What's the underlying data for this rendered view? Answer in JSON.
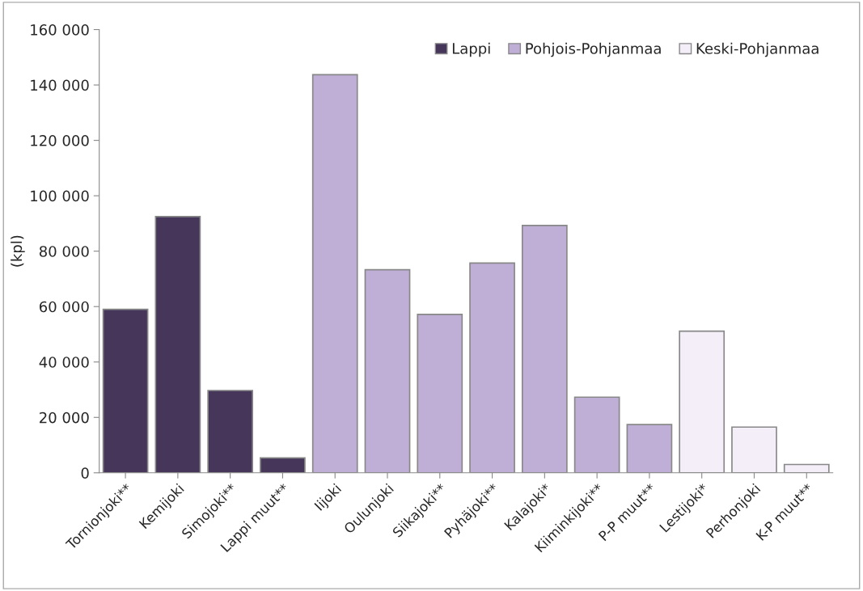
{
  "chart_data": {
    "type": "bar",
    "ylabel": "(kpl)",
    "categories": [
      "Tornionjoki**",
      "Kemijoki",
      "Simojoki**",
      "Lappi muut**",
      "Iijoki",
      "Oulunjoki",
      "Siikajoki**",
      "Pyhäjoki**",
      "Kalajoki*",
      "Kiiminkijoki**",
      "P-P muut**",
      "Lestijoki*",
      "Perhonjoki",
      "K-P muut**"
    ],
    "series": [
      {
        "name": "Lappi",
        "color": "#45365a",
        "values": [
          59000,
          92500,
          29700,
          5400,
          null,
          null,
          null,
          null,
          null,
          null,
          null,
          null,
          null,
          null
        ]
      },
      {
        "name": "Pohjois-Pohjanmaa",
        "color": "#bfaed6",
        "values": [
          null,
          null,
          null,
          null,
          143700,
          73300,
          57200,
          75700,
          89300,
          27300,
          17400,
          null,
          null,
          null
        ]
      },
      {
        "name": "Keski-Pohjanmaa",
        "color": "#f3eef8",
        "values": [
          null,
          null,
          null,
          null,
          null,
          null,
          null,
          null,
          null,
          null,
          null,
          51100,
          16500,
          3000
        ]
      }
    ],
    "ylim": [
      0,
      160000
    ],
    "yticks": [
      0,
      {
        "value": 20000,
        "label": "20 000"
      },
      {
        "value": 40000,
        "label": "40 000"
      },
      {
        "value": 60000,
        "label": "60 000"
      },
      {
        "value": 80000,
        "label": "80 000"
      },
      {
        "value": 100000,
        "label": "100 000"
      },
      {
        "value": 120000,
        "label": "120 000"
      },
      {
        "value": 140000,
        "label": "140 000"
      },
      {
        "value": 160000,
        "label": "160 000"
      }
    ],
    "grid": false,
    "legend": "top right"
  }
}
